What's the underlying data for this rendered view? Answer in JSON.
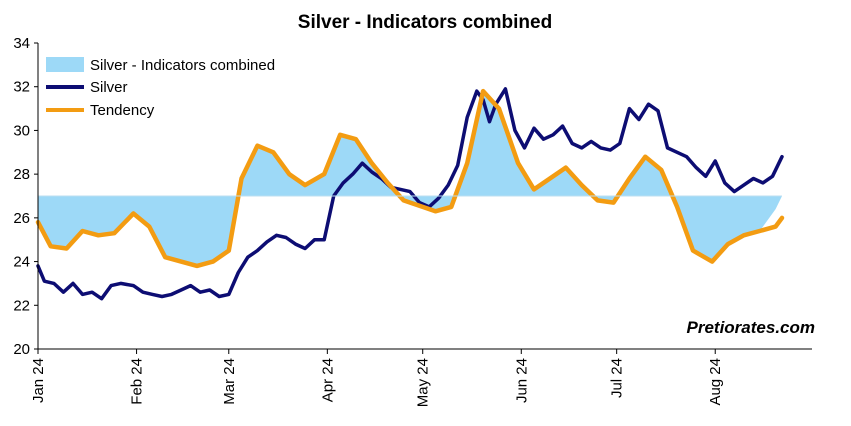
{
  "chart_data": {
    "type": "line",
    "title": "Silver - Indicators combined",
    "watermark": "Pretiorates.com",
    "ylim": [
      20,
      34
    ],
    "y_ticks": [
      "20",
      "22",
      "24",
      "26",
      "28",
      "30",
      "32",
      "34"
    ],
    "x_range": [
      "2024-01-01",
      "2024-08-22"
    ],
    "x_ticks": [
      {
        "label": "Jan 24",
        "date": "2024-01-01"
      },
      {
        "label": "Feb 24",
        "date": "2024-02-01"
      },
      {
        "label": "Mar 24",
        "date": "2024-03-01"
      },
      {
        "label": "Apr 24",
        "date": "2024-04-01"
      },
      {
        "label": "May 24",
        "date": "2024-05-01"
      },
      {
        "label": "Jun 24",
        "date": "2024-06-01"
      },
      {
        "label": "Jul 24",
        "date": "2024-07-01"
      },
      {
        "label": "Aug 24",
        "date": "2024-08-01"
      }
    ],
    "baseline": 27,
    "grid": false,
    "legend_position": "top-left",
    "series": [
      {
        "name": "Silver - Indicators combined",
        "kind": "area",
        "color": "#9dd9f7",
        "x": [
          "2024-01-01",
          "2024-01-05",
          "2024-01-10",
          "2024-01-15",
          "2024-01-20",
          "2024-01-25",
          "2024-01-31",
          "2024-02-05",
          "2024-02-10",
          "2024-02-15",
          "2024-02-20",
          "2024-02-25",
          "2024-03-01",
          "2024-03-05",
          "2024-03-10",
          "2024-03-15",
          "2024-03-20",
          "2024-03-25",
          "2024-03-31",
          "2024-04-05",
          "2024-04-10",
          "2024-04-15",
          "2024-04-20",
          "2024-04-25",
          "2024-05-01",
          "2024-05-05",
          "2024-05-10",
          "2024-05-15",
          "2024-05-20",
          "2024-05-25",
          "2024-05-31",
          "2024-06-05",
          "2024-06-10",
          "2024-06-15",
          "2024-06-20",
          "2024-06-25",
          "2024-06-30",
          "2024-07-05",
          "2024-07-10",
          "2024-07-15",
          "2024-07-20",
          "2024-07-25",
          "2024-07-31",
          "2024-08-05",
          "2024-08-10",
          "2024-08-15",
          "2024-08-20",
          "2024-08-22"
        ],
        "values": [
          25.8,
          24.7,
          24.6,
          25.4,
          25.2,
          25.3,
          26.2,
          25.6,
          24.2,
          24.0,
          23.8,
          24.0,
          24.5,
          27.8,
          29.3,
          29.0,
          28.0,
          27.5,
          28.0,
          29.8,
          29.6,
          28.5,
          27.6,
          26.8,
          26.5,
          26.3,
          26.5,
          28.5,
          31.8,
          31.0,
          28.5,
          27.3,
          27.8,
          28.3,
          27.5,
          26.8,
          26.7,
          27.8,
          28.8,
          28.2,
          26.5,
          24.5,
          24.0,
          24.8,
          25.2,
          25.4,
          26.4,
          27.0
        ]
      },
      {
        "name": "Silver",
        "kind": "line",
        "color": "#0d0d73",
        "x": [
          "2024-01-01",
          "2024-01-03",
          "2024-01-06",
          "2024-01-09",
          "2024-01-12",
          "2024-01-15",
          "2024-01-18",
          "2024-01-21",
          "2024-01-24",
          "2024-01-27",
          "2024-01-31",
          "2024-02-03",
          "2024-02-06",
          "2024-02-09",
          "2024-02-12",
          "2024-02-15",
          "2024-02-18",
          "2024-02-21",
          "2024-02-24",
          "2024-02-27",
          "2024-03-01",
          "2024-03-04",
          "2024-03-07",
          "2024-03-10",
          "2024-03-13",
          "2024-03-16",
          "2024-03-19",
          "2024-03-22",
          "2024-03-25",
          "2024-03-28",
          "2024-03-31",
          "2024-04-03",
          "2024-04-06",
          "2024-04-09",
          "2024-04-12",
          "2024-04-15",
          "2024-04-18",
          "2024-04-21",
          "2024-04-24",
          "2024-04-27",
          "2024-04-30",
          "2024-05-03",
          "2024-05-06",
          "2024-05-09",
          "2024-05-12",
          "2024-05-15",
          "2024-05-18",
          "2024-05-20",
          "2024-05-22",
          "2024-05-24",
          "2024-05-27",
          "2024-05-30",
          "2024-06-02",
          "2024-06-05",
          "2024-06-08",
          "2024-06-11",
          "2024-06-14",
          "2024-06-17",
          "2024-06-20",
          "2024-06-23",
          "2024-06-26",
          "2024-06-29",
          "2024-07-02",
          "2024-07-05",
          "2024-07-08",
          "2024-07-11",
          "2024-07-14",
          "2024-07-17",
          "2024-07-20",
          "2024-07-23",
          "2024-07-26",
          "2024-07-29",
          "2024-08-01",
          "2024-08-04",
          "2024-08-07",
          "2024-08-10",
          "2024-08-13",
          "2024-08-16",
          "2024-08-19",
          "2024-08-22"
        ],
        "values": [
          23.8,
          23.1,
          23.0,
          22.6,
          23.0,
          22.5,
          22.6,
          22.3,
          22.9,
          23.0,
          22.9,
          22.6,
          22.5,
          22.4,
          22.5,
          22.7,
          22.9,
          22.6,
          22.7,
          22.4,
          22.5,
          23.5,
          24.2,
          24.5,
          24.9,
          25.2,
          25.1,
          24.8,
          24.6,
          25.0,
          25.0,
          27.0,
          27.6,
          28.0,
          28.5,
          28.1,
          27.8,
          27.4,
          27.3,
          27.2,
          26.7,
          26.5,
          26.9,
          27.5,
          28.4,
          30.6,
          31.8,
          31.4,
          30.4,
          31.2,
          31.9,
          30.0,
          29.2,
          30.1,
          29.6,
          29.8,
          30.2,
          29.4,
          29.2,
          29.5,
          29.2,
          29.1,
          29.4,
          31.0,
          30.5,
          31.2,
          30.9,
          29.2,
          29.0,
          28.8,
          28.3,
          27.9,
          28.6,
          27.6,
          27.2,
          27.5,
          27.8,
          27.6,
          27.9,
          28.8
        ]
      },
      {
        "name": "Tendency",
        "kind": "line",
        "color": "#f39c12",
        "x": [
          "2024-01-01",
          "2024-01-05",
          "2024-01-10",
          "2024-01-15",
          "2024-01-20",
          "2024-01-25",
          "2024-01-31",
          "2024-02-05",
          "2024-02-10",
          "2024-02-15",
          "2024-02-20",
          "2024-02-25",
          "2024-03-01",
          "2024-03-05",
          "2024-03-10",
          "2024-03-15",
          "2024-03-20",
          "2024-03-25",
          "2024-03-31",
          "2024-04-05",
          "2024-04-10",
          "2024-04-15",
          "2024-04-20",
          "2024-04-25",
          "2024-05-01",
          "2024-05-05",
          "2024-05-10",
          "2024-05-15",
          "2024-05-20",
          "2024-05-25",
          "2024-05-31",
          "2024-06-05",
          "2024-06-10",
          "2024-06-15",
          "2024-06-20",
          "2024-06-25",
          "2024-06-30",
          "2024-07-05",
          "2024-07-10",
          "2024-07-15",
          "2024-07-20",
          "2024-07-25",
          "2024-07-31",
          "2024-08-05",
          "2024-08-10",
          "2024-08-15",
          "2024-08-20",
          "2024-08-22"
        ],
        "values": [
          25.8,
          24.7,
          24.6,
          25.4,
          25.2,
          25.3,
          26.2,
          25.6,
          24.2,
          24.0,
          23.8,
          24.0,
          24.5,
          27.8,
          29.3,
          29.0,
          28.0,
          27.5,
          28.0,
          29.8,
          29.6,
          28.5,
          27.6,
          26.8,
          26.5,
          26.3,
          26.5,
          28.5,
          31.8,
          31.0,
          28.5,
          27.3,
          27.8,
          28.3,
          27.5,
          26.8,
          26.7,
          27.8,
          28.8,
          28.2,
          26.5,
          24.5,
          24.0,
          24.8,
          25.2,
          25.4,
          25.6,
          26.0
        ]
      }
    ]
  }
}
